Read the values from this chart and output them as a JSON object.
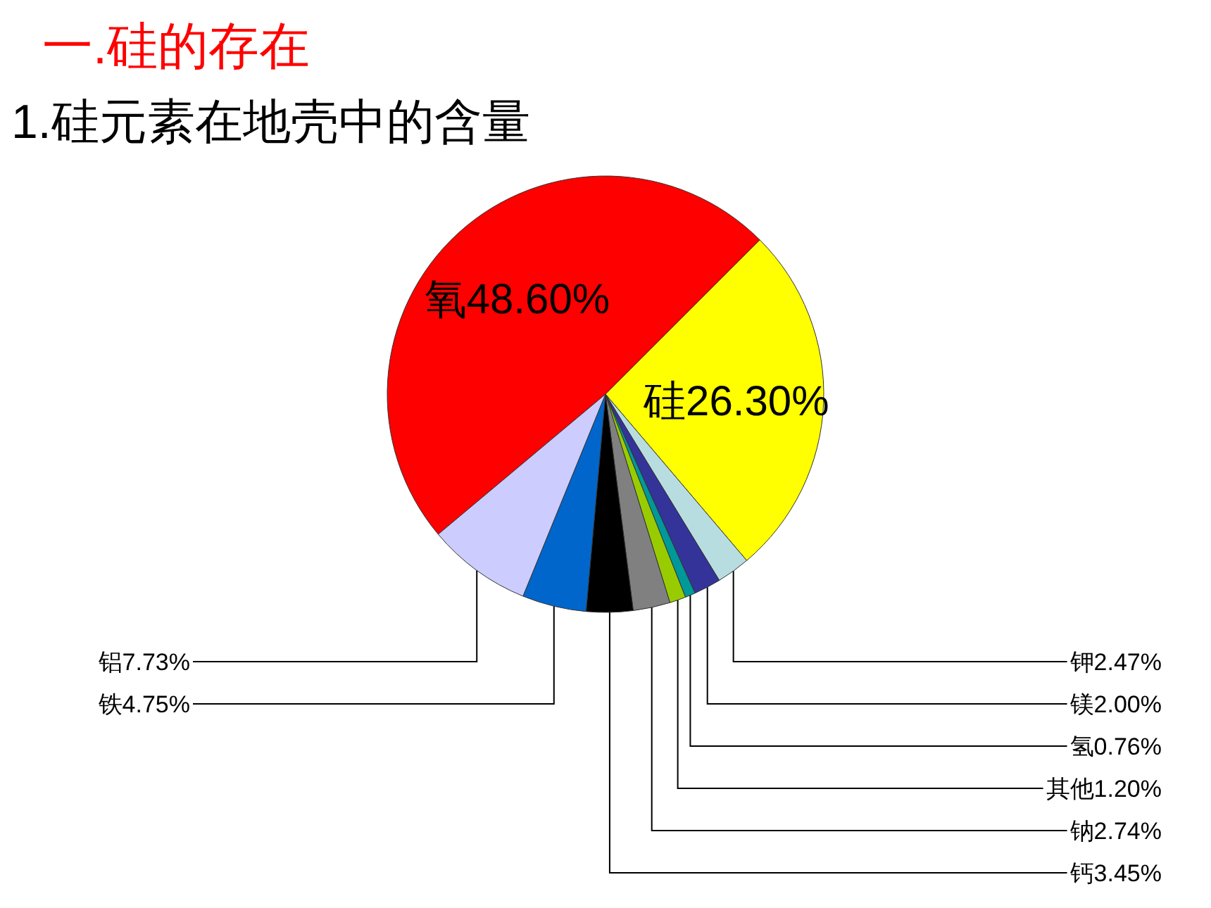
{
  "chart_data": {
    "type": "pie",
    "title": "一.硅的存在",
    "subtitle": "1.硅元素在地壳中的含量",
    "categories": [
      "氧",
      "硅",
      "钾",
      "镁",
      "氢",
      "其他",
      "钠",
      "钙",
      "铁",
      "铝"
    ],
    "values": [
      48.6,
      26.3,
      2.47,
      2.0,
      0.76,
      1.2,
      2.74,
      3.45,
      4.75,
      7.73
    ],
    "value_labels": [
      "48.60%",
      "26.30%",
      "2.47%",
      "2.00%",
      "0.76%",
      "1.20%",
      "2.74%",
      "3.45%",
      "4.75%",
      "7.73%"
    ],
    "colors": [
      "#ff0000",
      "#ffff00",
      "#b8dde0",
      "#333399",
      "#009999",
      "#99cc00",
      "#808080",
      "#000000",
      "#0066cc",
      "#ccccff"
    ]
  }
}
